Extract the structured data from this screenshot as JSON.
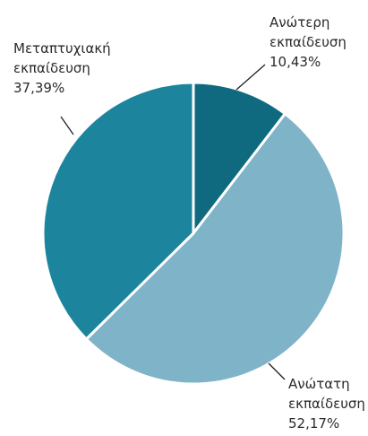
{
  "chart_data": {
    "type": "pie",
    "slices": [
      {
        "label_line1": "Ανώτερη",
        "label_line2": "εκπαίδευση",
        "pct_text": "10,43%",
        "value": 10.43,
        "color": "#0f6a80"
      },
      {
        "label_line1": "Ανώτατη",
        "label_line2": "εκπαίδευση",
        "pct_text": "52,17%",
        "value": 52.17,
        "color": "#7fb3c8"
      },
      {
        "label_line1": "Μεταπτυχιακή",
        "label_line2": "εκπαίδευση",
        "pct_text": "37,39%",
        "value": 37.39,
        "color": "#1c859d"
      }
    ],
    "start": "12 o'clock",
    "direction": "clockwise"
  }
}
